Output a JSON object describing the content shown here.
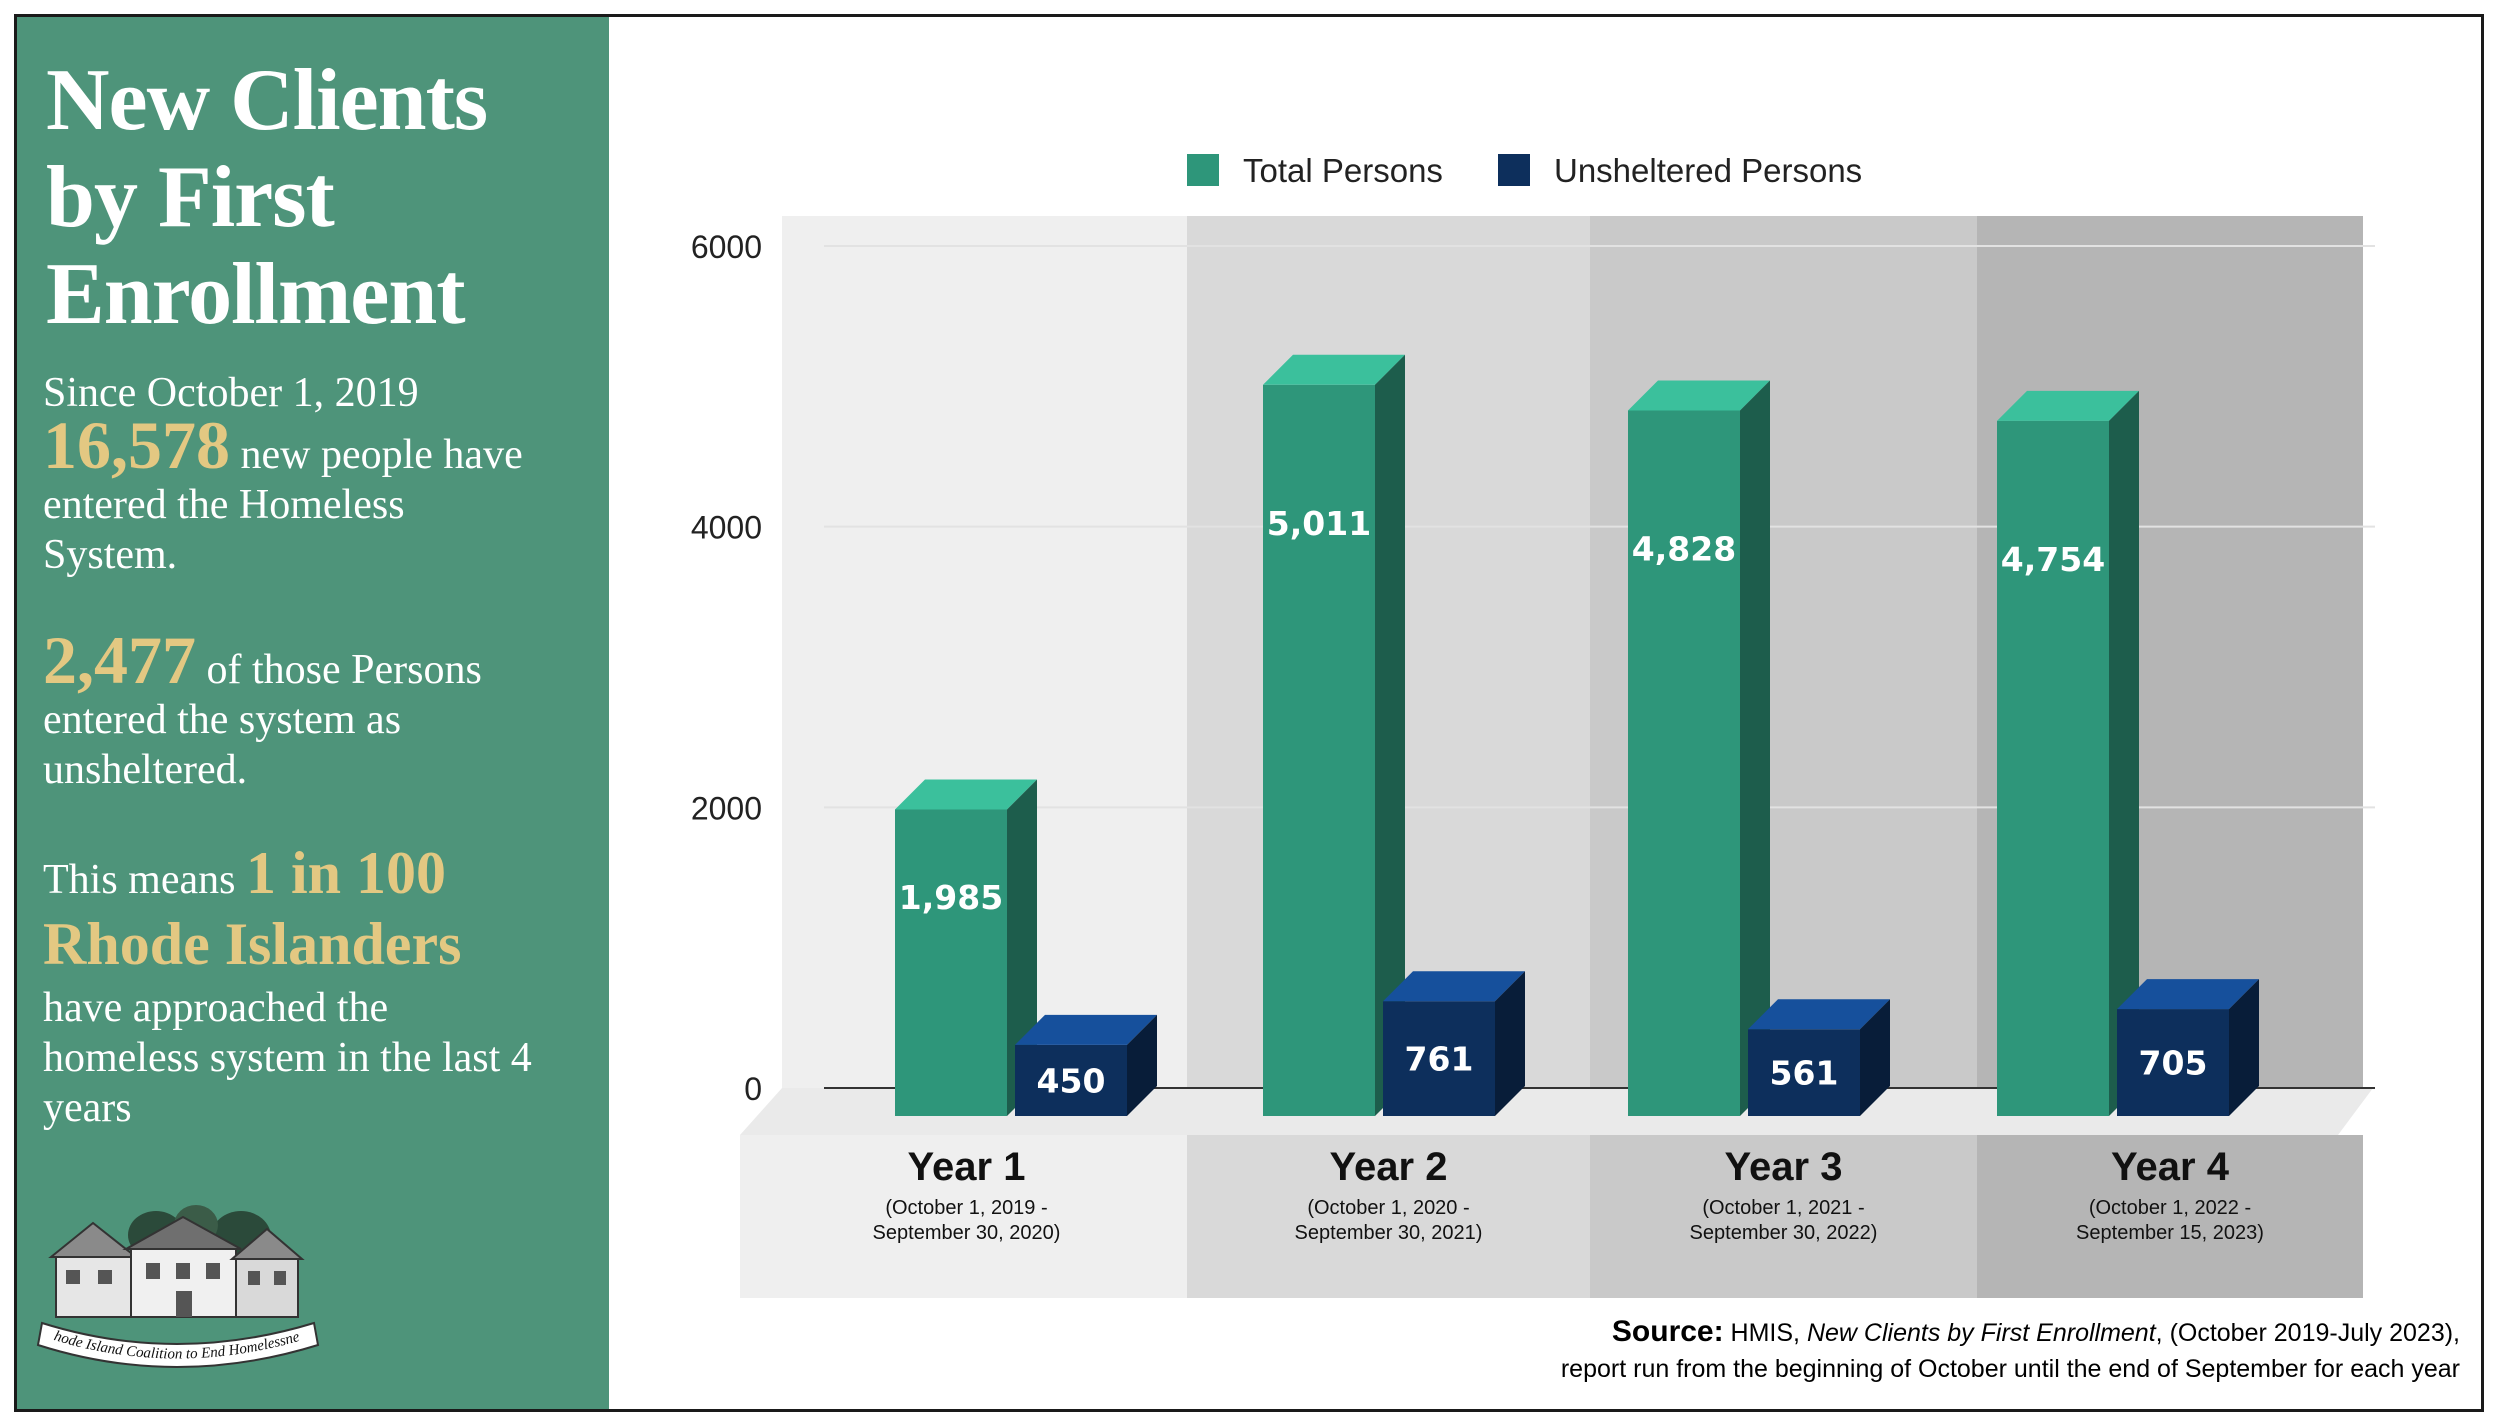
{
  "panel": {
    "title": "New Clients\nby First\nEnrollment",
    "since": "Since October 1, 2019",
    "stat1_number": "16,578",
    "stat1_text_a": " new people have",
    "stat1_text_b": "entered the Homeless",
    "stat1_text_c": "System.",
    "stat2_number": "2,477",
    "stat2_text_a": " of those Persons",
    "stat2_text_b": "entered the system as",
    "stat2_text_c": "unsheltered.",
    "stat3_lead": "This means ",
    "stat3_ratio": "1 in 100",
    "stat3_group": "Rhode Islanders",
    "stat3_text_a": "have approached the",
    "stat3_text_b": "homeless system in the last 4",
    "stat3_text_c": "years",
    "logo_text": "Rhode Island Coalition to End Homelessness"
  },
  "source": {
    "label": "Source:",
    "text_a": " HMIS, ",
    "text_italic": "New Clients by First Enrollment",
    "text_b": ", (October 2019-July 2023),",
    "line2": "report run from the beginning of October until the end of September for each year"
  },
  "colors": {
    "panel_bg": "#4e947a",
    "accent_gold": "#e3c882",
    "total_bar": "#2e967a",
    "unsheltered_bar": "#0d2f5c"
  },
  "chart_data": {
    "type": "bar",
    "categories": [
      "Year 1",
      "Year 2",
      "Year 3",
      "Year 4"
    ],
    "category_sublabels": [
      [
        "(October 1, 2019 -",
        "September 30, 2020)"
      ],
      [
        "(October 1, 2020 -",
        "September 30, 2021)"
      ],
      [
        "(October 1, 2021 -",
        "September 30, 2022)"
      ],
      [
        "(October 1, 2022 -",
        "September 15, 2023)"
      ]
    ],
    "series": [
      {
        "name": "Total Persons",
        "values": [
          1985,
          5011,
          4828,
          4754
        ],
        "labels": [
          "1,985",
          "5,011",
          "4,828",
          "4,754"
        ],
        "color": "#2e967a"
      },
      {
        "name": "Unsheltered Persons",
        "values": [
          450,
          761,
          561,
          705
        ],
        "labels": [
          "450",
          "761",
          "561",
          "705"
        ],
        "color": "#0d2f5c"
      }
    ],
    "ylim": [
      0,
      6000
    ],
    "yticks": [
      0,
      2000,
      4000,
      6000
    ],
    "ytick_labels": [
      "0",
      "2000",
      "4000",
      "6000"
    ],
    "legend_position": "top-center",
    "grid": true,
    "style": "3d"
  }
}
